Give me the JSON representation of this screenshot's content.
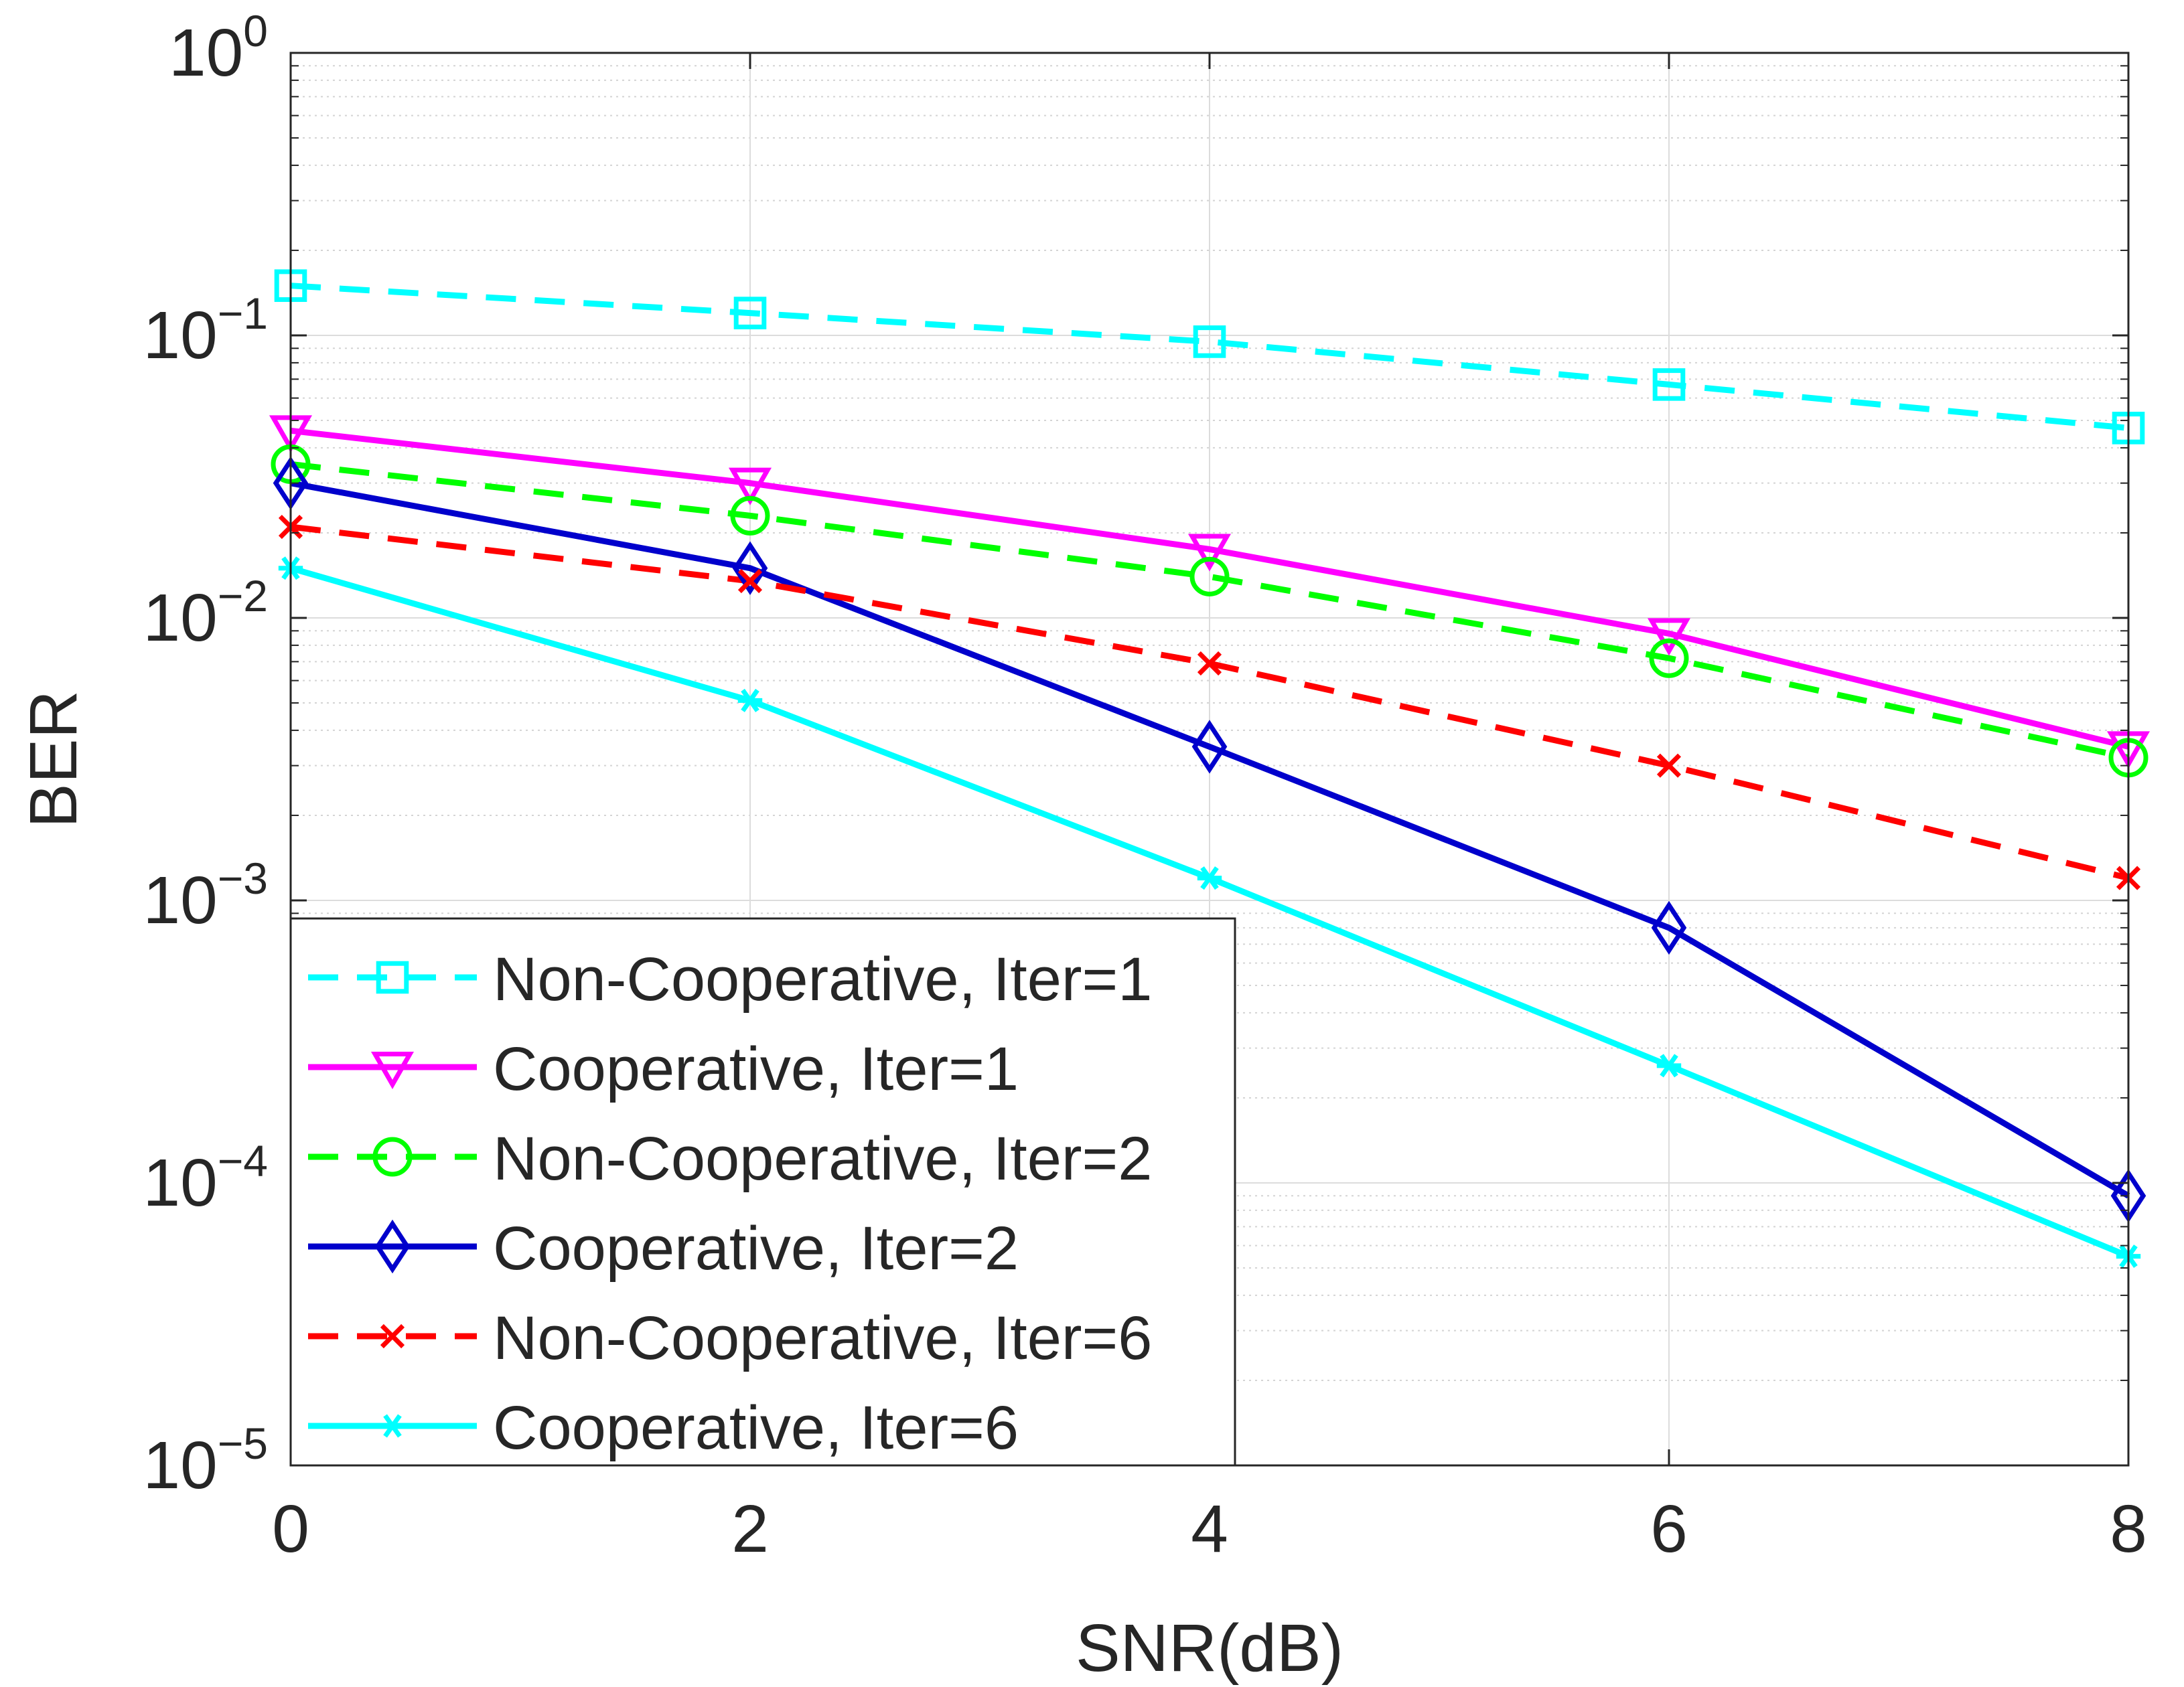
{
  "chart_data": {
    "type": "line",
    "title": "",
    "xlabel": "SNR(dB)",
    "ylabel": "BER",
    "yscale": "log",
    "xlim": [
      0,
      8
    ],
    "ylim": [
      1e-05,
      1
    ],
    "grid": true,
    "legend_position": "bottom-left",
    "x": [
      0,
      2,
      4,
      6,
      8
    ],
    "x_ticks": [
      {
        "value": 0,
        "label": "0"
      },
      {
        "value": 2,
        "label": "2"
      },
      {
        "value": 4,
        "label": "4"
      },
      {
        "value": 6,
        "label": "6"
      },
      {
        "value": 8,
        "label": "8"
      }
    ],
    "y_ticks": [
      {
        "value": 1,
        "base": "10",
        "exp": "0"
      },
      {
        "value": 0.1,
        "base": "10",
        "exp": "−1"
      },
      {
        "value": 0.01,
        "base": "10",
        "exp": "−2"
      },
      {
        "value": 0.001,
        "base": "10",
        "exp": "−3"
      },
      {
        "value": 0.0001,
        "base": "10",
        "exp": "−4"
      },
      {
        "value": 1e-05,
        "base": "10",
        "exp": "−5"
      }
    ],
    "series": [
      {
        "name": "Non-Cooperative, Iter=1",
        "color": "#00ffff",
        "dash": "dashed",
        "marker": "square",
        "values": [
          0.15,
          0.12,
          0.095,
          0.067,
          0.047
        ]
      },
      {
        "name": "Cooperative, Iter=1",
        "color": "#ff00ff",
        "dash": "solid",
        "marker": "triangle-down",
        "values": [
          0.046,
          0.03,
          0.0175,
          0.0088,
          0.0035
        ]
      },
      {
        "name": "Non-Cooperative, Iter=2",
        "color": "#00ff00",
        "dash": "dashed",
        "marker": "circle",
        "values": [
          0.035,
          0.023,
          0.014,
          0.0072,
          0.0032
        ]
      },
      {
        "name": "Cooperative, Iter=2",
        "color": "#0000cc",
        "dash": "solid",
        "marker": "diamond",
        "values": [
          0.03,
          0.015,
          0.0035,
          0.0008,
          9e-05
        ]
      },
      {
        "name": "Non-Cooperative, Iter=6",
        "color": "#ff0000",
        "dash": "dashed",
        "marker": "x",
        "values": [
          0.021,
          0.0135,
          0.0069,
          0.003,
          0.0012
        ]
      },
      {
        "name": "Cooperative, Iter=6",
        "color": "#00ffff",
        "dash": "solid",
        "marker": "asterisk",
        "values": [
          0.015,
          0.0051,
          0.0012,
          0.00026,
          5.5e-05
        ]
      }
    ]
  }
}
